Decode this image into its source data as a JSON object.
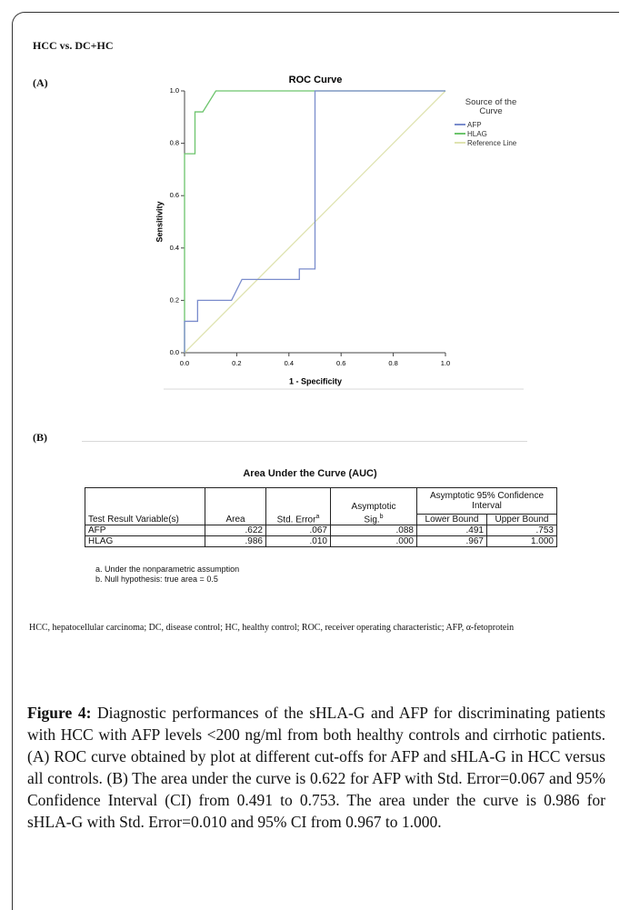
{
  "heading": "HCC vs. DC+HC",
  "panel_a": "(A)",
  "panel_b": "(B)",
  "chart_data": {
    "type": "line",
    "title": "ROC Curve",
    "x_label": "1 - Specificity",
    "y_label": "Sensitivity",
    "xlim": [
      0,
      1
    ],
    "ylim": [
      0,
      1
    ],
    "xticks": [
      {
        "value": 0,
        "label": "0.0"
      },
      {
        "value": 0.2,
        "label": "0.2"
      },
      {
        "value": 0.4,
        "label": "0.4"
      },
      {
        "value": 0.6,
        "label": "0.6"
      },
      {
        "value": 0.8,
        "label": "0.8"
      },
      {
        "value": 1,
        "label": "1.0"
      }
    ],
    "yticks": [
      {
        "value": 0,
        "label": "0.0"
      },
      {
        "value": 0.2,
        "label": "0.2"
      },
      {
        "value": 0.4,
        "label": "0.4"
      },
      {
        "value": 0.6,
        "label": "0.6"
      },
      {
        "value": 0.8,
        "label": "0.8"
      },
      {
        "value": 1,
        "label": "1.0"
      }
    ],
    "legend_title": "Source of the Curve",
    "series": [
      {
        "name": "AFP",
        "color": "#7a8ccc",
        "x": [
          0,
          0,
          0.05,
          0.05,
          0.18,
          0.22,
          0.44,
          0.44,
          0.5,
          0.5,
          1
        ],
        "values": [
          0,
          0.12,
          0.12,
          0.2,
          0.2,
          0.28,
          0.28,
          0.32,
          0.32,
          1,
          1
        ]
      },
      {
        "name": "HLAG",
        "color": "#6cc46c",
        "x": [
          0,
          0,
          0.04,
          0.04,
          0.07,
          0.12,
          1
        ],
        "values": [
          0,
          0.76,
          0.76,
          0.92,
          0.92,
          1,
          1
        ]
      },
      {
        "name": "Reference Line",
        "color": "#dfe3b0",
        "x": [
          0,
          1
        ],
        "values": [
          0,
          1
        ]
      }
    ]
  },
  "table": {
    "title": "Area Under the Curve (AUC)",
    "col_variable": "Test Result Variable(s)",
    "col_area": "Area",
    "col_se": "Std. Error",
    "col_se_note": "a",
    "col_sig": "Asymptotic Sig.",
    "col_sig_note": "b",
    "col_ci": "Asymptotic 95% Confidence Interval",
    "col_lower": "Lower Bound",
    "col_upper": "Upper Bound",
    "rows": [
      [
        "AFP",
        ".622",
        ".067",
        ".088",
        ".491",
        ".753"
      ],
      [
        "HLAG",
        ".986",
        ".010",
        ".000",
        ".967",
        "1.000"
      ]
    ],
    "footnotes": [
      "a. Under the nonparametric assumption",
      "b. Null hypothesis: true area = 0.5"
    ]
  },
  "note": "HCC, hepatocellular carcinoma; DC, disease control; HC, healthy control; ROC, receiver operating characteristic; AFP, α-fetoprotein",
  "caption": {
    "label": "Figure 4:",
    "text": " Diagnostic performances of the sHLA-G and AFP for discriminating patients with HCC with AFP levels <200 ng/ml from both healthy controls and cirrhotic patients. (A) ROC curve obtained by plot at different cut-offs for AFP and sHLA-G in HCC versus all controls. (B) The area under the curve is 0.622 for AFP with Std. Error=0.067 and 95% Confidence Interval (CI) from 0.491 to 0.753. The area under the curve is 0.986 for sHLA-G with Std. Error=0.010 and 95% CI from 0.967 to 1.000."
  }
}
